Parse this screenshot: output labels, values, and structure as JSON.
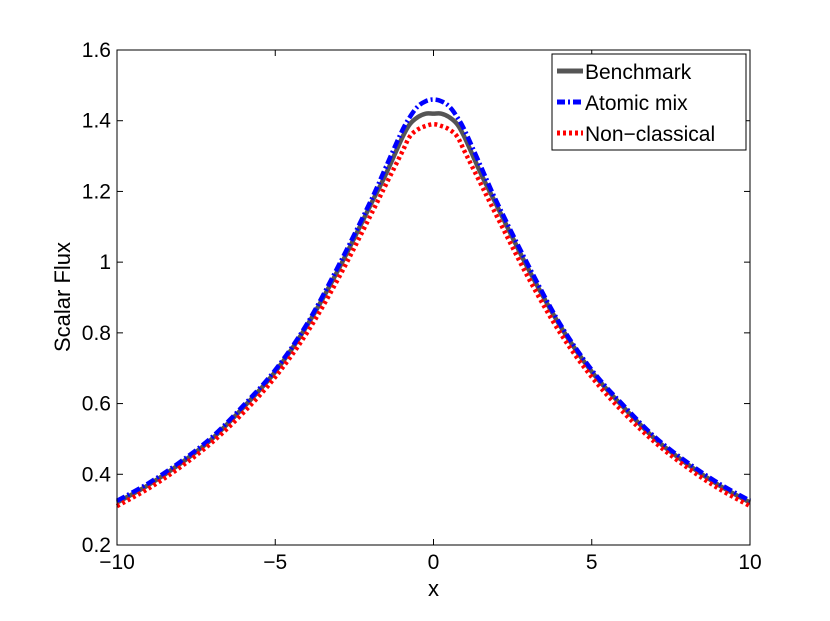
{
  "chart_data": {
    "type": "line",
    "xlabel": "x",
    "ylabel": "Scalar Flux",
    "xlim": [
      -10,
      10
    ],
    "ylim": [
      0.2,
      1.6
    ],
    "xticks": [
      -10,
      -5,
      0,
      5,
      10
    ],
    "xtick_labels": [
      "−10",
      "−5",
      "0",
      "5",
      "10"
    ],
    "yticks": [
      0.2,
      0.4,
      0.6,
      0.8,
      1.0,
      1.2,
      1.4,
      1.6
    ],
    "ytick_labels": [
      "0.2",
      "0.4",
      "0.6",
      "0.8",
      "1",
      "1.2",
      "1.4",
      "1.6"
    ],
    "grid": false,
    "legend_position": "top-right",
    "x": [
      -10,
      -9,
      -8,
      -7,
      -6,
      -5,
      -4,
      -3,
      -2,
      -1.5,
      -1,
      -0.75,
      -0.5,
      -0.25,
      0,
      0.25,
      0.5,
      0.75,
      1,
      1.5,
      2,
      3,
      4,
      5,
      6,
      7,
      8,
      9,
      10
    ],
    "series": [
      {
        "name": "Benchmark",
        "color": "#555555",
        "style": "solid",
        "values": [
          0.32,
          0.37,
          0.43,
          0.5,
          0.59,
          0.69,
          0.82,
          0.98,
          1.16,
          1.25,
          1.35,
          1.39,
          1.41,
          1.42,
          1.42,
          1.42,
          1.41,
          1.39,
          1.35,
          1.25,
          1.16,
          0.98,
          0.82,
          0.69,
          0.59,
          0.5,
          0.43,
          0.37,
          0.32
        ]
      },
      {
        "name": "Atomic mix",
        "color": "#0000ff",
        "style": "dashdot",
        "values": [
          0.325,
          0.375,
          0.435,
          0.505,
          0.595,
          0.695,
          0.825,
          0.99,
          1.17,
          1.27,
          1.37,
          1.41,
          1.44,
          1.455,
          1.46,
          1.455,
          1.44,
          1.41,
          1.37,
          1.27,
          1.17,
          0.99,
          0.825,
          0.695,
          0.595,
          0.505,
          0.435,
          0.375,
          0.325
        ]
      },
      {
        "name": "Non-classical",
        "color": "#ff0000",
        "style": "dotted",
        "values": [
          0.31,
          0.36,
          0.42,
          0.49,
          0.575,
          0.675,
          0.8,
          0.955,
          1.13,
          1.22,
          1.31,
          1.355,
          1.375,
          1.385,
          1.39,
          1.385,
          1.375,
          1.355,
          1.31,
          1.22,
          1.13,
          0.955,
          0.8,
          0.675,
          0.575,
          0.49,
          0.42,
          0.36,
          0.31
        ]
      }
    ]
  },
  "legend": {
    "items": [
      "Benchmark",
      "Atomic mix",
      "Non−classical"
    ]
  }
}
